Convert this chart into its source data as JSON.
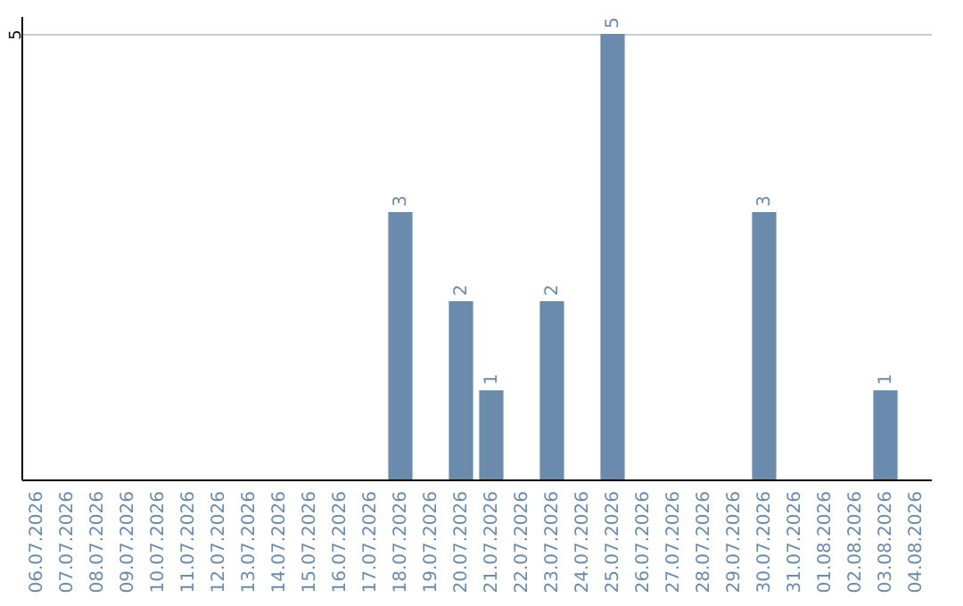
{
  "chart_data": {
    "type": "bar",
    "categories": [
      "06.07.2026",
      "07.07.2026",
      "08.07.2026",
      "09.07.2026",
      "10.07.2026",
      "11.07.2026",
      "12.07.2026",
      "13.07.2026",
      "14.07.2026",
      "15.07.2026",
      "16.07.2026",
      "17.07.2026",
      "18.07.2026",
      "19.07.2026",
      "20.07.2026",
      "21.07.2026",
      "22.07.2026",
      "23.07.2026",
      "24.07.2026",
      "25.07.2026",
      "26.07.2026",
      "27.07.2026",
      "28.07.2026",
      "29.07.2026",
      "30.07.2026",
      "31.07.2026",
      "01.08.2026",
      "02.08.2026",
      "03.08.2026",
      "04.08.2026"
    ],
    "values": [
      null,
      null,
      null,
      null,
      null,
      null,
      null,
      null,
      null,
      null,
      null,
      null,
      3,
      null,
      2,
      1,
      null,
      2,
      null,
      5,
      null,
      null,
      null,
      null,
      3,
      null,
      null,
      null,
      1,
      null
    ],
    "color": "#6a8bab",
    "ylim": [
      0,
      5.2
    ],
    "yticks": [
      5
    ],
    "grid": "y",
    "data_labels": true
  }
}
